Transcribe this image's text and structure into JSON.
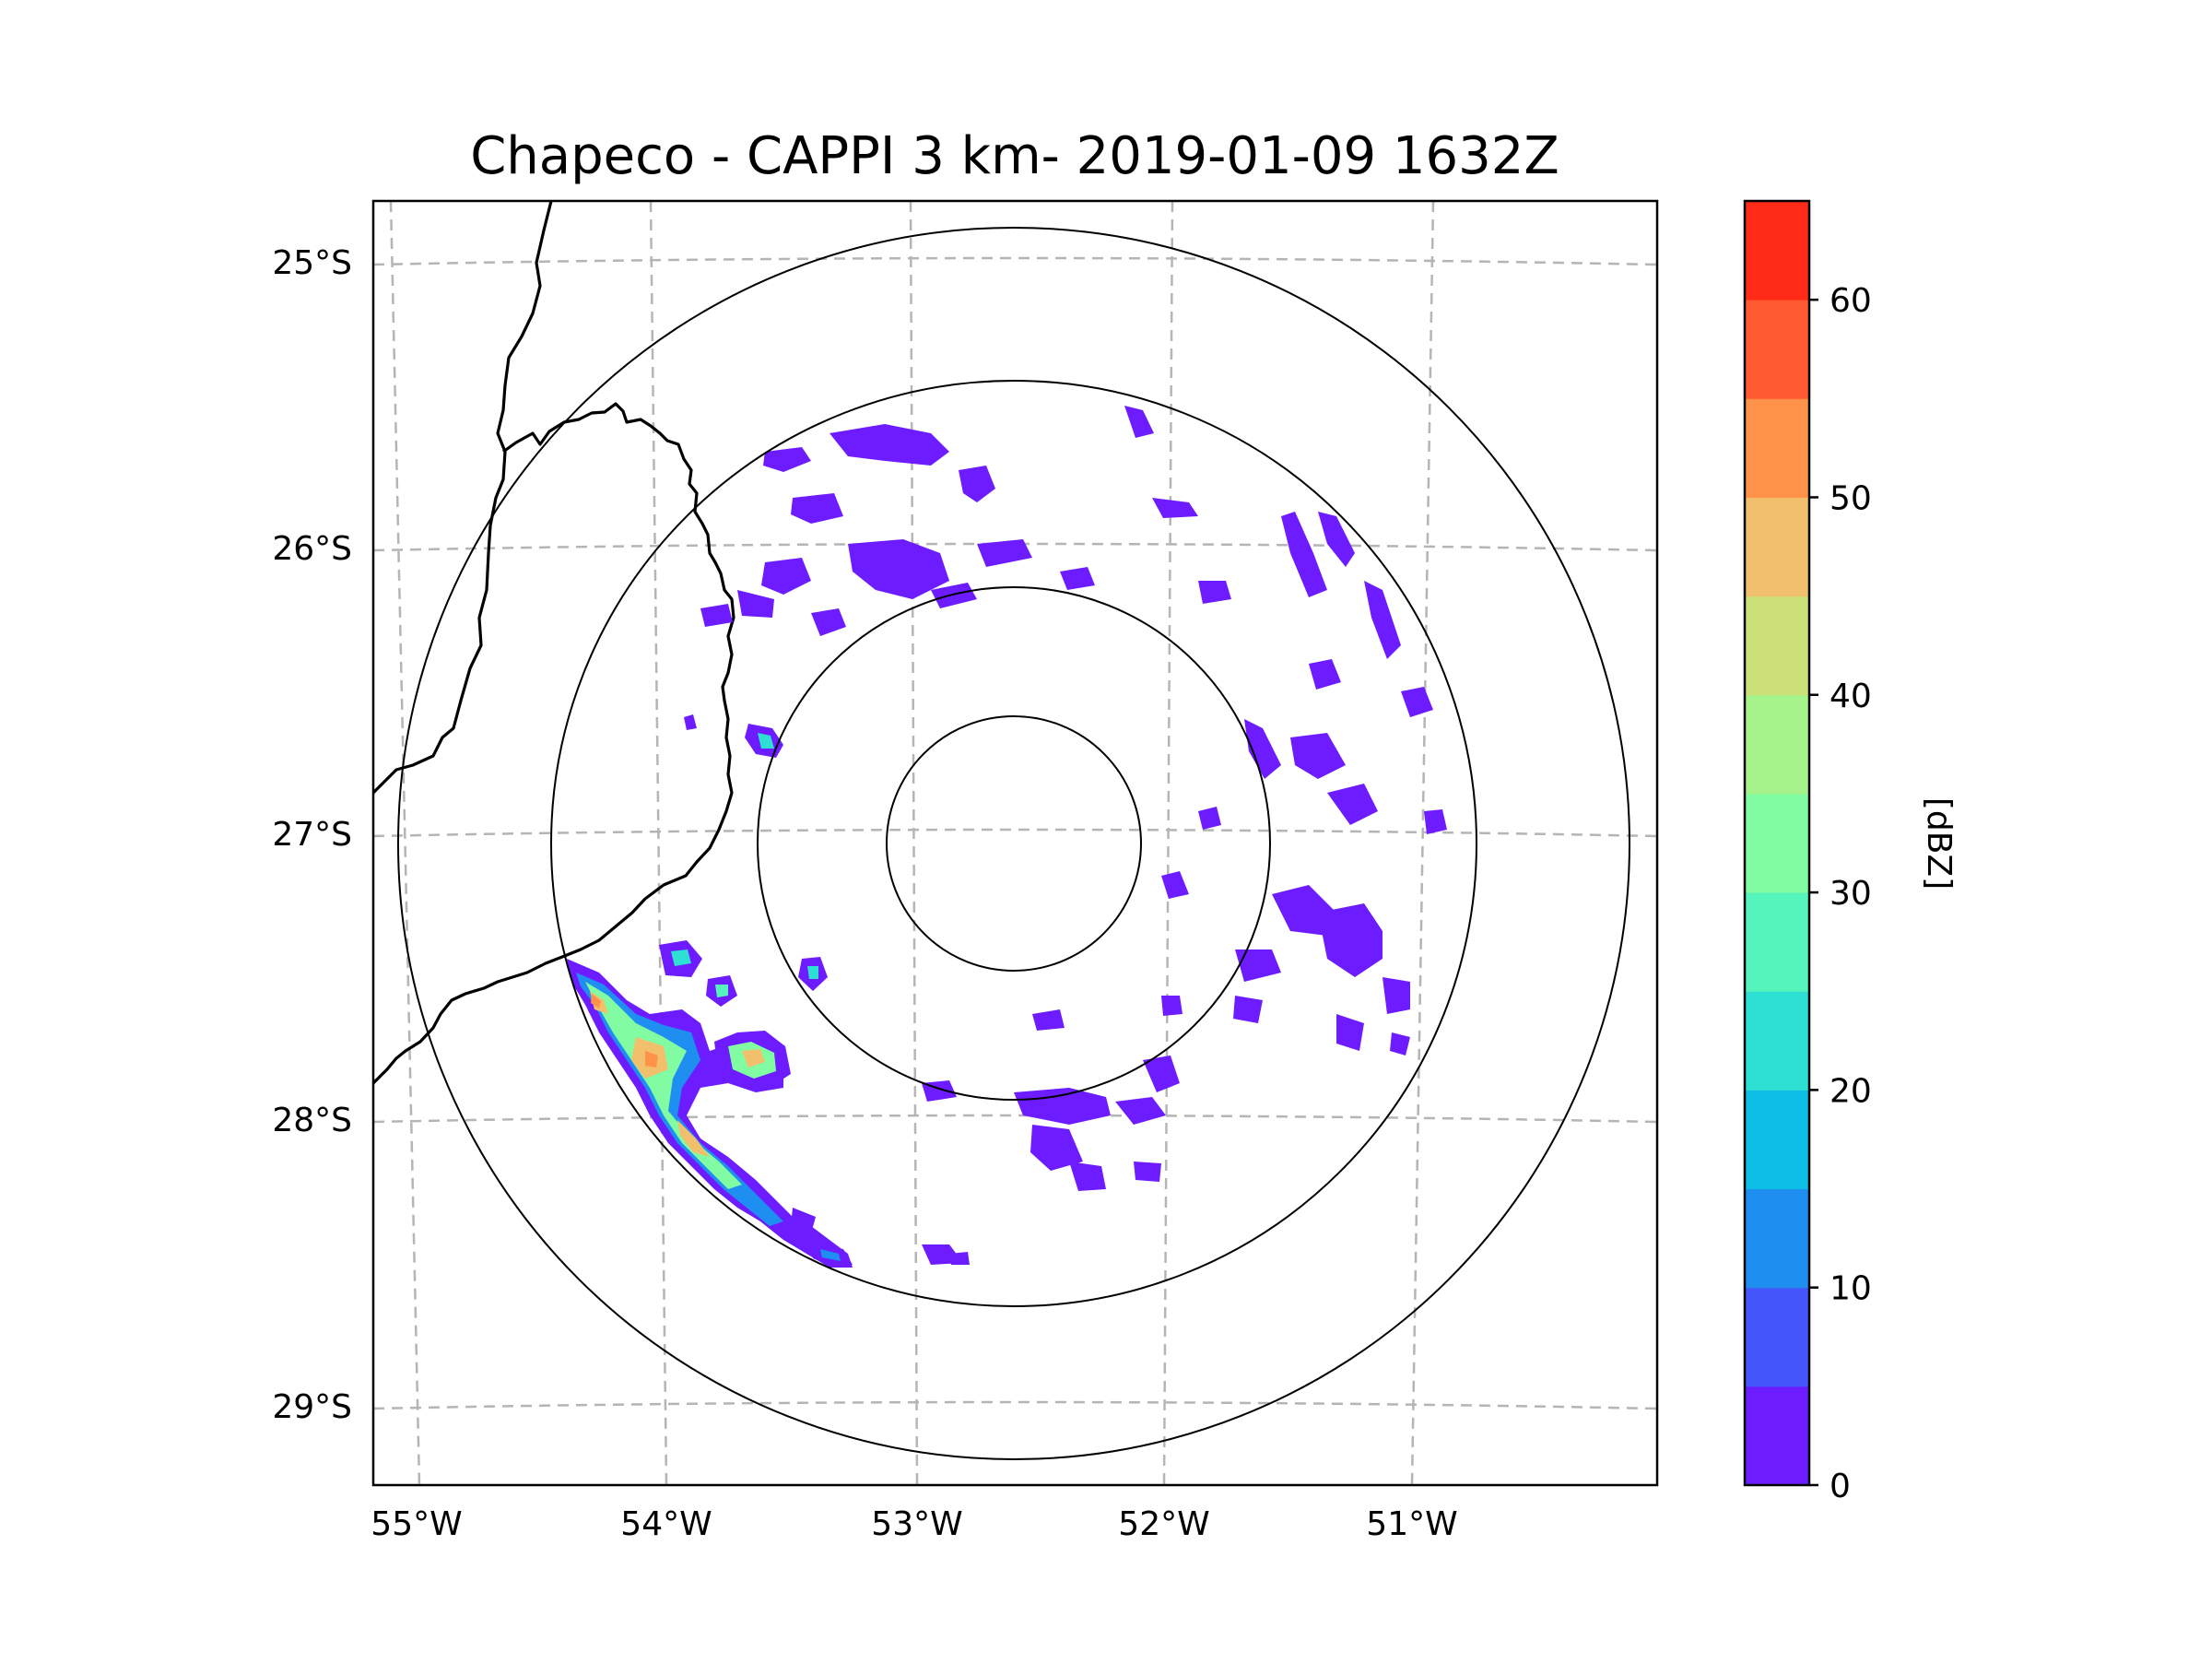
{
  "figure": {
    "title": "Chapeco - CAPPI 3 km- 2019-01-09 1632Z"
  },
  "map": {
    "lat_labels": [
      "25°S",
      "26°S",
      "27°S",
      "28°S",
      "29°S"
    ],
    "lon_labels": [
      "55°W",
      "54°W",
      "53°W",
      "52°W",
      "51°W"
    ],
    "range_rings": 4
  },
  "colorbar": {
    "label": "[dBZ]",
    "tick_labels": [
      "0",
      "10",
      "20",
      "30",
      "40",
      "50",
      "60"
    ],
    "levels": [
      0,
      5,
      10,
      15,
      20,
      25,
      30,
      35,
      40,
      45,
      50,
      55,
      60,
      65
    ],
    "colors": [
      "#6d1cff",
      "#4455fb",
      "#1e8ff0",
      "#0ebfe5",
      "#2ee0d3",
      "#55f4bc",
      "#82fca2",
      "#a6f28b",
      "#cce07a",
      "#f2c06c",
      "#ff9249",
      "#ff5a31",
      "#ff2a18"
    ]
  },
  "reflectivity_cells": [
    {
      "region": "southwest line",
      "max_dbz": 55
    },
    {
      "region": "west",
      "max_dbz": 20
    },
    {
      "region": "north",
      "max_dbz": 10
    },
    {
      "region": "east",
      "max_dbz": 10
    }
  ]
}
